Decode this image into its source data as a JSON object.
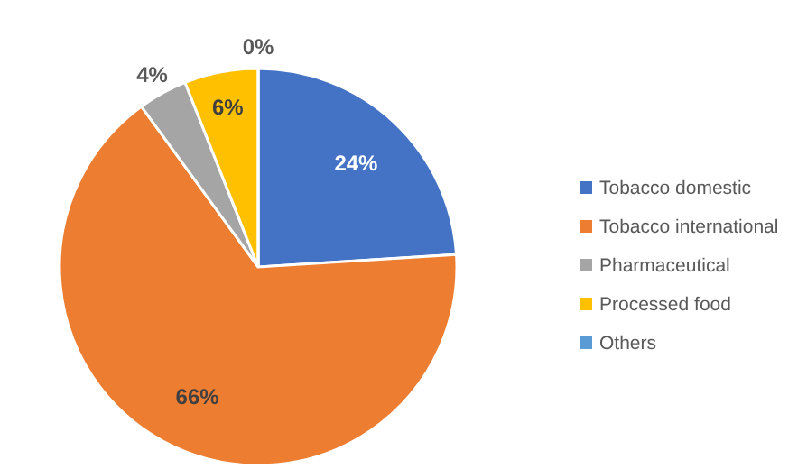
{
  "chart_data": {
    "type": "pie",
    "categories": [
      "Tobacco domestic",
      "Tobacco international",
      "Pharmaceutical",
      "Processed food",
      "Others"
    ],
    "values": [
      24,
      66,
      4,
      6,
      0
    ],
    "colors": [
      "#4472c4",
      "#ed7d31",
      "#a5a5a5",
      "#ffc000",
      "#5b9bd5"
    ],
    "value_labels": [
      "24%",
      "66%",
      "4%",
      "6%",
      "0%"
    ],
    "legend": "right"
  }
}
